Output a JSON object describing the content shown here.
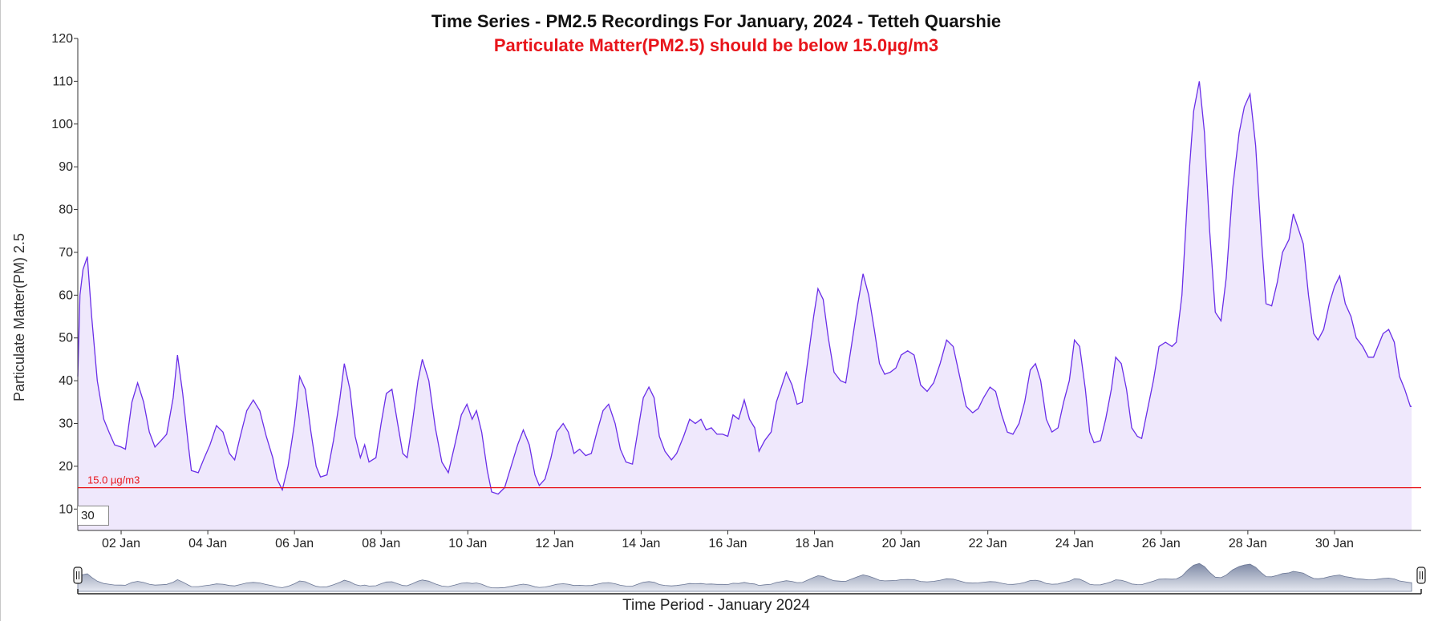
{
  "chart_data": {
    "type": "area",
    "title": "Time Series - PM2.5 Recordings For January, 2024 - Tetteh Quarshie",
    "subtitle": "Particulate Matter(PM2.5) should be below 15.0µg/m3",
    "ylabel": "Particulate Matter(PM) 2.5",
    "xlabel": "Time Period - January 2024",
    "ylim": [
      5,
      120
    ],
    "xlim": [
      1,
      32
    ],
    "yticks": [
      "10",
      "20",
      "30",
      "40",
      "50",
      "60",
      "70",
      "80",
      "90",
      "100",
      "110",
      "120"
    ],
    "xticks": [
      {
        "day": 2,
        "label": "02 Jan"
      },
      {
        "day": 4,
        "label": "04 Jan"
      },
      {
        "day": 6,
        "label": "06 Jan"
      },
      {
        "day": 8,
        "label": "08 Jan"
      },
      {
        "day": 10,
        "label": "10 Jan"
      },
      {
        "day": 12,
        "label": "12 Jan"
      },
      {
        "day": 14,
        "label": "14 Jan"
      },
      {
        "day": 16,
        "label": "16 Jan"
      },
      {
        "day": 18,
        "label": "18 Jan"
      },
      {
        "day": 20,
        "label": "20 Jan"
      },
      {
        "day": 22,
        "label": "22 Jan"
      },
      {
        "day": 24,
        "label": "24 Jan"
      },
      {
        "day": 26,
        "label": "26 Jan"
      },
      {
        "day": 28,
        "label": "28 Jan"
      },
      {
        "day": 30,
        "label": "30 Jan"
      }
    ],
    "threshold": {
      "value": 15.0,
      "label": "15.0 µg/m3"
    },
    "rolling_period": "30",
    "grid": false,
    "series": [
      {
        "color": "#6a2ee8",
        "fill": "#efe8fc",
        "points": [
          [
            1.0,
            41
          ],
          [
            1.05,
            60
          ],
          [
            1.12,
            66
          ],
          [
            1.22,
            69
          ],
          [
            1.32,
            55
          ],
          [
            1.45,
            40
          ],
          [
            1.6,
            31
          ],
          [
            1.72,
            28
          ],
          [
            1.85,
            25
          ],
          [
            2.0,
            24.5
          ],
          [
            2.1,
            24
          ],
          [
            2.25,
            35
          ],
          [
            2.38,
            39.5
          ],
          [
            2.52,
            35
          ],
          [
            2.65,
            28
          ],
          [
            2.78,
            24.5
          ],
          [
            2.92,
            26
          ],
          [
            3.05,
            27.5
          ],
          [
            3.2,
            36
          ],
          [
            3.3,
            46
          ],
          [
            3.42,
            37
          ],
          [
            3.55,
            25
          ],
          [
            3.62,
            19
          ],
          [
            3.78,
            18.5
          ],
          [
            3.92,
            22
          ],
          [
            4.05,
            25
          ],
          [
            4.2,
            29.5
          ],
          [
            4.35,
            28
          ],
          [
            4.5,
            23
          ],
          [
            4.62,
            21.5
          ],
          [
            4.75,
            27
          ],
          [
            4.9,
            33
          ],
          [
            5.05,
            35.5
          ],
          [
            5.2,
            33
          ],
          [
            5.35,
            27
          ],
          [
            5.5,
            22
          ],
          [
            5.6,
            17
          ],
          [
            5.72,
            14.5
          ],
          [
            5.85,
            20
          ],
          [
            6.0,
            30
          ],
          [
            6.12,
            41
          ],
          [
            6.25,
            38
          ],
          [
            6.38,
            28
          ],
          [
            6.5,
            20
          ],
          [
            6.6,
            17.5
          ],
          [
            6.75,
            18
          ],
          [
            6.9,
            26
          ],
          [
            7.05,
            36
          ],
          [
            7.15,
            44
          ],
          [
            7.28,
            38
          ],
          [
            7.4,
            27
          ],
          [
            7.52,
            22
          ],
          [
            7.62,
            25
          ],
          [
            7.72,
            21
          ],
          [
            7.88,
            22
          ],
          [
            8.0,
            30
          ],
          [
            8.12,
            37
          ],
          [
            8.25,
            38
          ],
          [
            8.38,
            30
          ],
          [
            8.5,
            23
          ],
          [
            8.6,
            22
          ],
          [
            8.72,
            30
          ],
          [
            8.85,
            40
          ],
          [
            8.95,
            45
          ],
          [
            9.1,
            40
          ],
          [
            9.25,
            29
          ],
          [
            9.4,
            21
          ],
          [
            9.55,
            18.5
          ],
          [
            9.7,
            25
          ],
          [
            9.85,
            32
          ],
          [
            9.98,
            34.5
          ],
          [
            10.1,
            31
          ],
          [
            10.2,
            33
          ],
          [
            10.32,
            28
          ],
          [
            10.45,
            19
          ],
          [
            10.55,
            14
          ],
          [
            10.7,
            13.5
          ],
          [
            10.85,
            15
          ],
          [
            11.0,
            20
          ],
          [
            11.15,
            25
          ],
          [
            11.28,
            28.5
          ],
          [
            11.42,
            25
          ],
          [
            11.55,
            18
          ],
          [
            11.65,
            15.5
          ],
          [
            11.78,
            17
          ],
          [
            11.92,
            22
          ],
          [
            12.05,
            28
          ],
          [
            12.2,
            30
          ],
          [
            12.32,
            28
          ],
          [
            12.45,
            23
          ],
          [
            12.58,
            24
          ],
          [
            12.72,
            22.5
          ],
          [
            12.85,
            23
          ],
          [
            12.98,
            28
          ],
          [
            13.12,
            33
          ],
          [
            13.25,
            34.5
          ],
          [
            13.4,
            30
          ],
          [
            13.52,
            24
          ],
          [
            13.65,
            21
          ],
          [
            13.8,
            20.5
          ],
          [
            13.92,
            28
          ],
          [
            14.05,
            36
          ],
          [
            14.18,
            38.5
          ],
          [
            14.3,
            36
          ],
          [
            14.42,
            27
          ],
          [
            14.55,
            23.5
          ],
          [
            14.7,
            21.5
          ],
          [
            14.82,
            23
          ],
          [
            14.98,
            27
          ],
          [
            15.12,
            31
          ],
          [
            15.25,
            30
          ],
          [
            15.38,
            31
          ],
          [
            15.5,
            28.5
          ],
          [
            15.62,
            29
          ],
          [
            15.75,
            27.5
          ],
          [
            15.88,
            27.5
          ],
          [
            16.0,
            27
          ],
          [
            16.12,
            32
          ],
          [
            16.25,
            31
          ],
          [
            16.38,
            35.5
          ],
          [
            16.5,
            31
          ],
          [
            16.62,
            29
          ],
          [
            16.72,
            23.5
          ],
          [
            16.85,
            26
          ],
          [
            17.0,
            28
          ],
          [
            17.12,
            35
          ],
          [
            17.22,
            38
          ],
          [
            17.35,
            42
          ],
          [
            17.48,
            39
          ],
          [
            17.6,
            34.5
          ],
          [
            17.72,
            35
          ],
          [
            17.85,
            45
          ],
          [
            17.98,
            55
          ],
          [
            18.08,
            61.5
          ],
          [
            18.2,
            59
          ],
          [
            18.32,
            50
          ],
          [
            18.45,
            42
          ],
          [
            18.6,
            40
          ],
          [
            18.72,
            39.5
          ],
          [
            18.85,
            48
          ],
          [
            19.0,
            58
          ],
          [
            19.12,
            65
          ],
          [
            19.25,
            60
          ],
          [
            19.38,
            52
          ],
          [
            19.5,
            44
          ],
          [
            19.62,
            41.5
          ],
          [
            19.75,
            42
          ],
          [
            19.88,
            43
          ],
          [
            20.0,
            46
          ],
          [
            20.15,
            47
          ],
          [
            20.3,
            46
          ],
          [
            20.45,
            39
          ],
          [
            20.6,
            37.5
          ],
          [
            20.75,
            39.5
          ],
          [
            20.9,
            44
          ],
          [
            21.05,
            49.5
          ],
          [
            21.2,
            48
          ],
          [
            21.35,
            41
          ],
          [
            21.5,
            34
          ],
          [
            21.65,
            32.5
          ],
          [
            21.78,
            33.5
          ],
          [
            21.9,
            36
          ],
          [
            22.05,
            38.5
          ],
          [
            22.18,
            37.5
          ],
          [
            22.32,
            32
          ],
          [
            22.45,
            28
          ],
          [
            22.58,
            27.5
          ],
          [
            22.72,
            30
          ],
          [
            22.85,
            35
          ],
          [
            22.98,
            42.5
          ],
          [
            23.1,
            44
          ],
          [
            23.22,
            40
          ],
          [
            23.35,
            31
          ],
          [
            23.48,
            28
          ],
          [
            23.62,
            29
          ],
          [
            23.75,
            35
          ],
          [
            23.88,
            40
          ],
          [
            24.0,
            49.5
          ],
          [
            24.12,
            48
          ],
          [
            24.25,
            38
          ],
          [
            24.35,
            28
          ],
          [
            24.45,
            25.5
          ],
          [
            24.6,
            26
          ],
          [
            24.72,
            31
          ],
          [
            24.85,
            38
          ],
          [
            24.95,
            45.5
          ],
          [
            25.08,
            44
          ],
          [
            25.2,
            38
          ],
          [
            25.32,
            29
          ],
          [
            25.45,
            27
          ],
          [
            25.55,
            26.5
          ],
          [
            25.68,
            33
          ],
          [
            25.82,
            40
          ],
          [
            25.95,
            48
          ],
          [
            26.1,
            49
          ],
          [
            26.25,
            48
          ],
          [
            26.35,
            49
          ],
          [
            26.48,
            60
          ],
          [
            26.62,
            85
          ],
          [
            26.75,
            103
          ],
          [
            26.88,
            110
          ],
          [
            27.0,
            98
          ],
          [
            27.12,
            75
          ],
          [
            27.25,
            56
          ],
          [
            27.38,
            54
          ],
          [
            27.5,
            64
          ],
          [
            27.65,
            85
          ],
          [
            27.8,
            98
          ],
          [
            27.92,
            104
          ],
          [
            28.05,
            107
          ],
          [
            28.18,
            95
          ],
          [
            28.3,
            75
          ],
          [
            28.42,
            58
          ],
          [
            28.55,
            57.5
          ],
          [
            28.68,
            63
          ],
          [
            28.8,
            70
          ],
          [
            28.95,
            73
          ],
          [
            29.05,
            79
          ],
          [
            29.15,
            76
          ],
          [
            29.28,
            72
          ],
          [
            29.4,
            60
          ],
          [
            29.52,
            51
          ],
          [
            29.62,
            49.5
          ],
          [
            29.75,
            52
          ],
          [
            29.88,
            58
          ],
          [
            30.0,
            62
          ],
          [
            30.12,
            64.5
          ],
          [
            30.25,
            58
          ],
          [
            30.38,
            55
          ],
          [
            30.5,
            50
          ],
          [
            30.65,
            48
          ],
          [
            30.78,
            45.5
          ],
          [
            30.9,
            45.5
          ],
          [
            31.0,
            48
          ],
          [
            31.12,
            51
          ],
          [
            31.25,
            52
          ],
          [
            31.38,
            49
          ],
          [
            31.5,
            41
          ],
          [
            31.62,
            38
          ],
          [
            31.75,
            34
          ],
          [
            31.78,
            34
          ]
        ]
      }
    ]
  }
}
